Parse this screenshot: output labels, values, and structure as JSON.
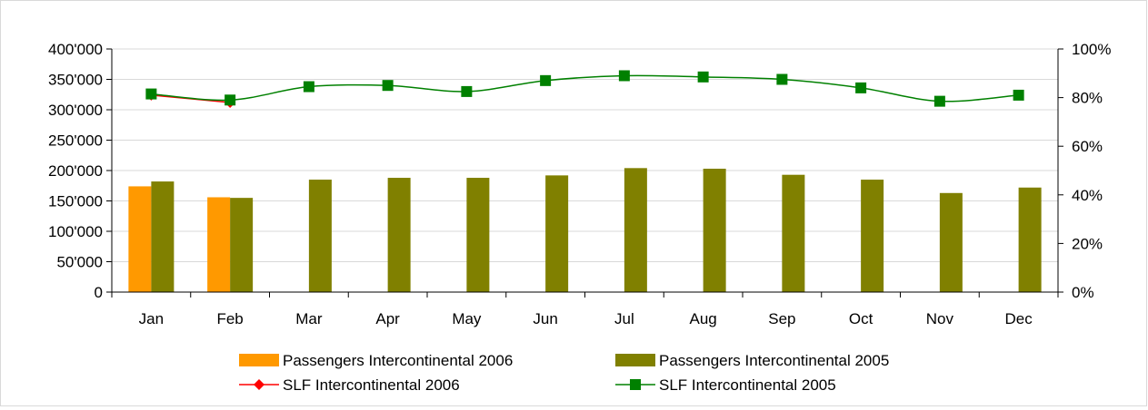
{
  "chart_data": {
    "type": "bar",
    "categories": [
      "Jan",
      "Feb",
      "Mar",
      "Apr",
      "May",
      "Jun",
      "Jul",
      "Aug",
      "Sep",
      "Oct",
      "Nov",
      "Dec"
    ],
    "left_axis": {
      "min": 0,
      "max": 400000,
      "step": 50000,
      "tick_labels": [
        "0",
        "50'000",
        "100'000",
        "150'000",
        "200'000",
        "250'000",
        "300'000",
        "350'000",
        "400'000"
      ]
    },
    "right_axis": {
      "min": 0,
      "max": 100,
      "step": 20,
      "tick_labels": [
        "0%",
        "20%",
        "40%",
        "60%",
        "80%",
        "100%"
      ]
    },
    "grid": true,
    "legend_position": "bottom",
    "series": [
      {
        "name": "Passengers Intercontinental 2006",
        "kind": "bar",
        "axis": "left",
        "color": "#FF9900",
        "values": [
          174000,
          156000,
          null,
          null,
          null,
          null,
          null,
          null,
          null,
          null,
          null,
          null
        ]
      },
      {
        "name": "Passengers Intercontinental 2005",
        "kind": "bar",
        "axis": "left",
        "color": "#808000",
        "values": [
          182000,
          155000,
          185000,
          188000,
          188000,
          192000,
          204000,
          203000,
          193000,
          185000,
          163000,
          172000
        ]
      },
      {
        "name": "SLF Intercontinental 2006",
        "kind": "line",
        "axis": "right",
        "color": "#FF0000",
        "marker": "diamond",
        "values": [
          81,
          78,
          null,
          null,
          null,
          null,
          null,
          null,
          null,
          null,
          null,
          null
        ]
      },
      {
        "name": "SLF Intercontinental 2005",
        "kind": "line",
        "axis": "right",
        "color": "#008000",
        "marker": "square",
        "values": [
          81.5,
          79,
          84.5,
          85,
          82.5,
          87,
          89,
          88.5,
          87.5,
          84,
          78.5,
          81
        ]
      }
    ]
  }
}
